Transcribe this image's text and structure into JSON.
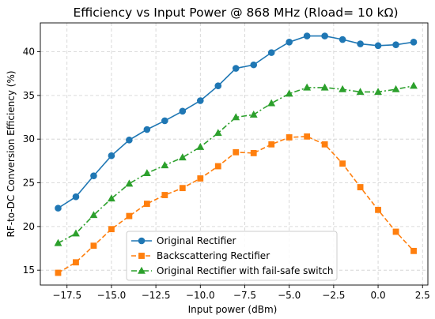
{
  "chart_data": {
    "type": "line",
    "title": "Efficiency vs Input Power @ 868 MHz (Rload= 10 kΩ)",
    "xlabel": "Input power (dBm)",
    "ylabel": "RF-to-DC Conversion Efficiency (%)",
    "xlim": [
      -19,
      2.8
    ],
    "ylim": [
      13.3,
      43.3
    ],
    "grid": true,
    "legend_position": "bottom-center",
    "x_ticks": [
      -17.5,
      -15.0,
      -12.5,
      -10.0,
      -7.5,
      -5.0,
      -2.5,
      0.0,
      2.5
    ],
    "x_tick_labels": [
      "−17.5",
      "−15.0",
      "−12.5",
      "−10.0",
      "−7.5",
      "−5.0",
      "−2.5",
      "0.0",
      "2.5"
    ],
    "y_ticks": [
      15,
      20,
      25,
      30,
      35,
      40
    ],
    "y_tick_labels": [
      "15",
      "20",
      "25",
      "30",
      "35",
      "40"
    ],
    "x": [
      -18,
      -17,
      -16,
      -15,
      -14,
      -13,
      -12,
      -11,
      -10,
      -9,
      -8,
      -7,
      -6,
      -5,
      -4,
      -3,
      -2,
      -1,
      0,
      1,
      2
    ],
    "series": [
      {
        "name": "Original Rectifier",
        "color": "#1f77b4",
        "marker": "circle",
        "dash": "solid",
        "values": [
          22.1,
          23.4,
          25.8,
          28.1,
          29.9,
          31.1,
          32.1,
          33.2,
          34.4,
          36.1,
          38.1,
          38.5,
          39.9,
          41.1,
          41.8,
          41.8,
          41.4,
          40.9,
          40.7,
          40.8,
          41.1
        ]
      },
      {
        "name": "Backscattering Rectifier",
        "color": "#ff7f0e",
        "marker": "square",
        "dash": "dashed",
        "values": [
          14.7,
          15.9,
          17.8,
          19.7,
          21.2,
          22.6,
          23.6,
          24.4,
          25.5,
          26.9,
          28.5,
          28.4,
          29.4,
          30.2,
          30.3,
          29.4,
          27.2,
          24.5,
          21.9,
          19.4,
          17.2
        ]
      },
      {
        "name": "Original Rectifier with fail-safe switch",
        "color": "#2ca02c",
        "marker": "triangle",
        "dash": "dashdot",
        "values": [
          18.1,
          19.2,
          21.3,
          23.2,
          24.9,
          26.1,
          27.0,
          27.9,
          29.1,
          30.7,
          32.5,
          32.8,
          34.1,
          35.2,
          35.9,
          35.9,
          35.7,
          35.4,
          35.4,
          35.7,
          36.1
        ]
      }
    ]
  }
}
